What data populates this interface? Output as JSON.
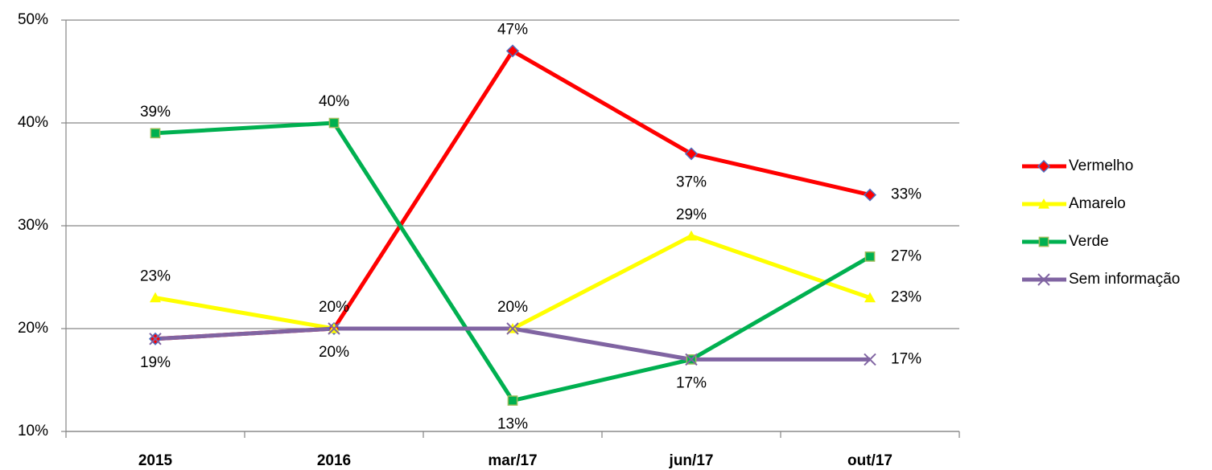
{
  "chart_data": {
    "type": "line",
    "categories": [
      "2015",
      "2016",
      "mar/17",
      "jun/17",
      "out/17"
    ],
    "ylim": [
      10,
      50
    ],
    "yticks": [
      {
        "value": 10,
        "label": "10%"
      },
      {
        "value": 20,
        "label": "20%"
      },
      {
        "value": 30,
        "label": "30%"
      },
      {
        "value": 40,
        "label": "40%"
      },
      {
        "value": 50,
        "label": "50%"
      }
    ],
    "grid": true,
    "legend": "right",
    "series": [
      {
        "name": "Vermelho",
        "color": "#ff0000",
        "marker": "diamond",
        "values": [
          19,
          20,
          47,
          37,
          33
        ],
        "value_labels": [
          null,
          null,
          "47%",
          "37%",
          "33%"
        ]
      },
      {
        "name": "Amarelo",
        "color": "#ffff00",
        "marker": "triangle",
        "values": [
          23,
          20,
          20,
          29,
          23
        ],
        "value_labels": [
          "23%",
          "20%",
          "20%",
          "29%",
          "23%"
        ]
      },
      {
        "name": "Verde",
        "color": "#00b050",
        "marker": "square",
        "values": [
          39,
          40,
          13,
          17,
          27
        ],
        "value_labels": [
          "39%",
          "40%",
          "13%",
          "17%",
          "27%"
        ]
      },
      {
        "name": "Sem informação",
        "color": "#8064a2",
        "marker": "x",
        "values": [
          19,
          20,
          20,
          17,
          17
        ],
        "value_labels": [
          "19%",
          "20%",
          null,
          null,
          "17%"
        ]
      }
    ]
  }
}
